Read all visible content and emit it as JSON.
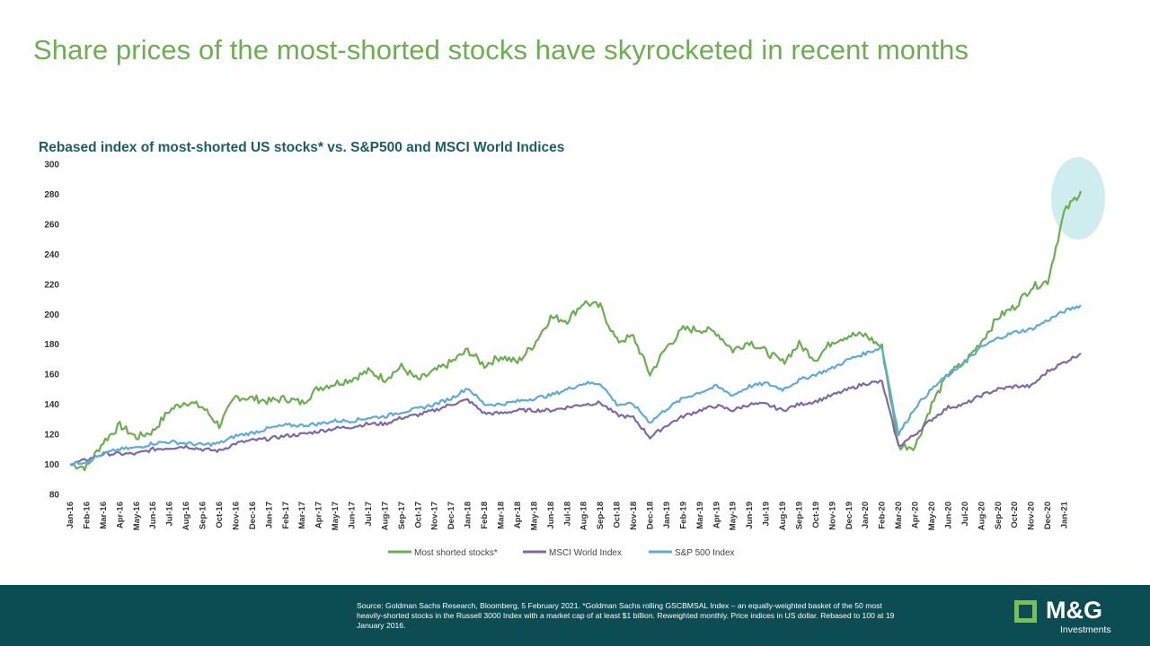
{
  "slide": {
    "title": "Share prices of the most-shorted stocks have skyrocketed in recent months"
  },
  "colors": {
    "title_green": "#6ab04c",
    "chart_title": "#1b5e63",
    "footer_bg": "#0c4c53",
    "logo_green": "#7cc242",
    "highlight": "#bfe6e8"
  },
  "chart_data": {
    "type": "line",
    "title": "Rebased index of most-shorted US stocks* vs. S&P500 and MSCI World Indices",
    "ylim": [
      80,
      300
    ],
    "yticks": [
      80,
      100,
      120,
      140,
      160,
      180,
      200,
      220,
      240,
      260,
      280,
      300
    ],
    "grid": false,
    "legend_position": "bottom",
    "x_tick_labels": [
      "Jan-16",
      "Feb-16",
      "Mar-16",
      "Apr-16",
      "May-16",
      "Jun-16",
      "Jul-16",
      "Aug-16",
      "Sep-16",
      "Oct-16",
      "Nov-16",
      "Dec-16",
      "Jan-17",
      "Feb-17",
      "Mar-17",
      "Apr-17",
      "May-17",
      "Jun-17",
      "Jul-17",
      "Aug-17",
      "Sep-17",
      "Oct-17",
      "Nov-17",
      "Dec-17",
      "Jan-18",
      "Feb-18",
      "Mar-18",
      "Apr-18",
      "May-18",
      "Jun-18",
      "Jul-18",
      "Aug-18",
      "Sep-18",
      "Oct-18",
      "Nov-18",
      "Dec-18",
      "Jan-19",
      "Feb-19",
      "Mar-19",
      "Apr-19",
      "May-19",
      "Jun-19",
      "Jul-19",
      "Aug-19",
      "Sep-19",
      "Oct-19",
      "Nov-19",
      "Dec-19",
      "Jan-20",
      "Feb-20",
      "Mar-20",
      "Apr-20",
      "May-20",
      "Jun-20",
      "Jul-20",
      "Aug-20",
      "Sep-20",
      "Oct-20",
      "Nov-20",
      "Dec-20",
      "Jan-21"
    ],
    "x": [
      "Jan-16",
      "Feb-16",
      "Mar-16",
      "Apr-16",
      "May-16",
      "Jun-16",
      "Jul-16",
      "Aug-16",
      "Sep-16",
      "Oct-16",
      "Nov-16",
      "Dec-16",
      "Jan-17",
      "Feb-17",
      "Mar-17",
      "Apr-17",
      "May-17",
      "Jun-17",
      "Jul-17",
      "Aug-17",
      "Sep-17",
      "Oct-17",
      "Nov-17",
      "Dec-17",
      "Jan-18",
      "Feb-18",
      "Mar-18",
      "Apr-18",
      "May-18",
      "Jun-18",
      "Jul-18",
      "Aug-18",
      "Sep-18",
      "Oct-18",
      "Nov-18",
      "Dec-18",
      "Jan-19",
      "Feb-19",
      "Mar-19",
      "Apr-19",
      "May-19",
      "Jun-19",
      "Jul-19",
      "Aug-19",
      "Sep-19",
      "Oct-19",
      "Nov-19",
      "Dec-19",
      "Jan-20",
      "Feb-20",
      "Mar-20",
      "Apr-20",
      "May-20",
      "Jun-20",
      "Jul-20",
      "Aug-20",
      "Sep-20",
      "Oct-20",
      "Nov-20",
      "Dec-20",
      "Jan-21",
      "Feb-21"
    ],
    "series": [
      {
        "name": "Most shorted stocks*",
        "color": "#6ab04c",
        "values": [
          100,
          98,
          115,
          126,
          118,
          122,
          136,
          142,
          138,
          126,
          145,
          144,
          142,
          144,
          141,
          151,
          154,
          157,
          162,
          157,
          165,
          156,
          162,
          168,
          176,
          166,
          172,
          168,
          180,
          198,
          196,
          208,
          205,
          182,
          185,
          160,
          178,
          190,
          190,
          188,
          176,
          182,
          175,
          168,
          180,
          170,
          182,
          186,
          186,
          178,
          112,
          112,
          140,
          160,
          168,
          182,
          198,
          205,
          218,
          222,
          268,
          282
        ]
      },
      {
        "name": "MSCI World Index",
        "color": "#7e68ad",
        "values": [
          100,
          103,
          107,
          107,
          107,
          110,
          111,
          112,
          110,
          109,
          114,
          116,
          117,
          119,
          120,
          122,
          124,
          125,
          127,
          127,
          131,
          133,
          136,
          140,
          143,
          134,
          134,
          136,
          136,
          136,
          138,
          140,
          141,
          133,
          131,
          118,
          126,
          132,
          136,
          139,
          136,
          140,
          140,
          136,
          140,
          142,
          146,
          150,
          154,
          155,
          112,
          120,
          130,
          138,
          140,
          146,
          150,
          152,
          152,
          162,
          168,
          174
        ]
      },
      {
        "name": "S&P 500 Index",
        "color": "#5aacdf",
        "values": [
          100,
          102,
          107,
          110,
          111,
          114,
          115,
          114,
          113,
          114,
          119,
          121,
          124,
          126,
          126,
          127,
          129,
          129,
          131,
          132,
          135,
          137,
          140,
          144,
          151,
          140,
          140,
          142,
          144,
          146,
          150,
          154,
          154,
          140,
          140,
          128,
          137,
          144,
          148,
          152,
          146,
          152,
          154,
          150,
          156,
          160,
          164,
          170,
          174,
          178,
          120,
          138,
          150,
          160,
          168,
          178,
          184,
          188,
          190,
          196,
          202,
          206
        ]
      }
    ]
  },
  "footer": {
    "source": "Source: Goldman Sachs Research, Bloomberg, 5 February 2021. *Goldman Sachs rolling GSCBMSAL Index – an equally-weighted basket of the 50 most heavily-shorted stocks in the Russell 3000 Index with a market cap of at least $1 billion. Reweighted monthly. Price indices in US dollar. Rebased to 100 at 19 January 2016.",
    "logo_name": "M&G",
    "logo_sub": "Investments"
  }
}
